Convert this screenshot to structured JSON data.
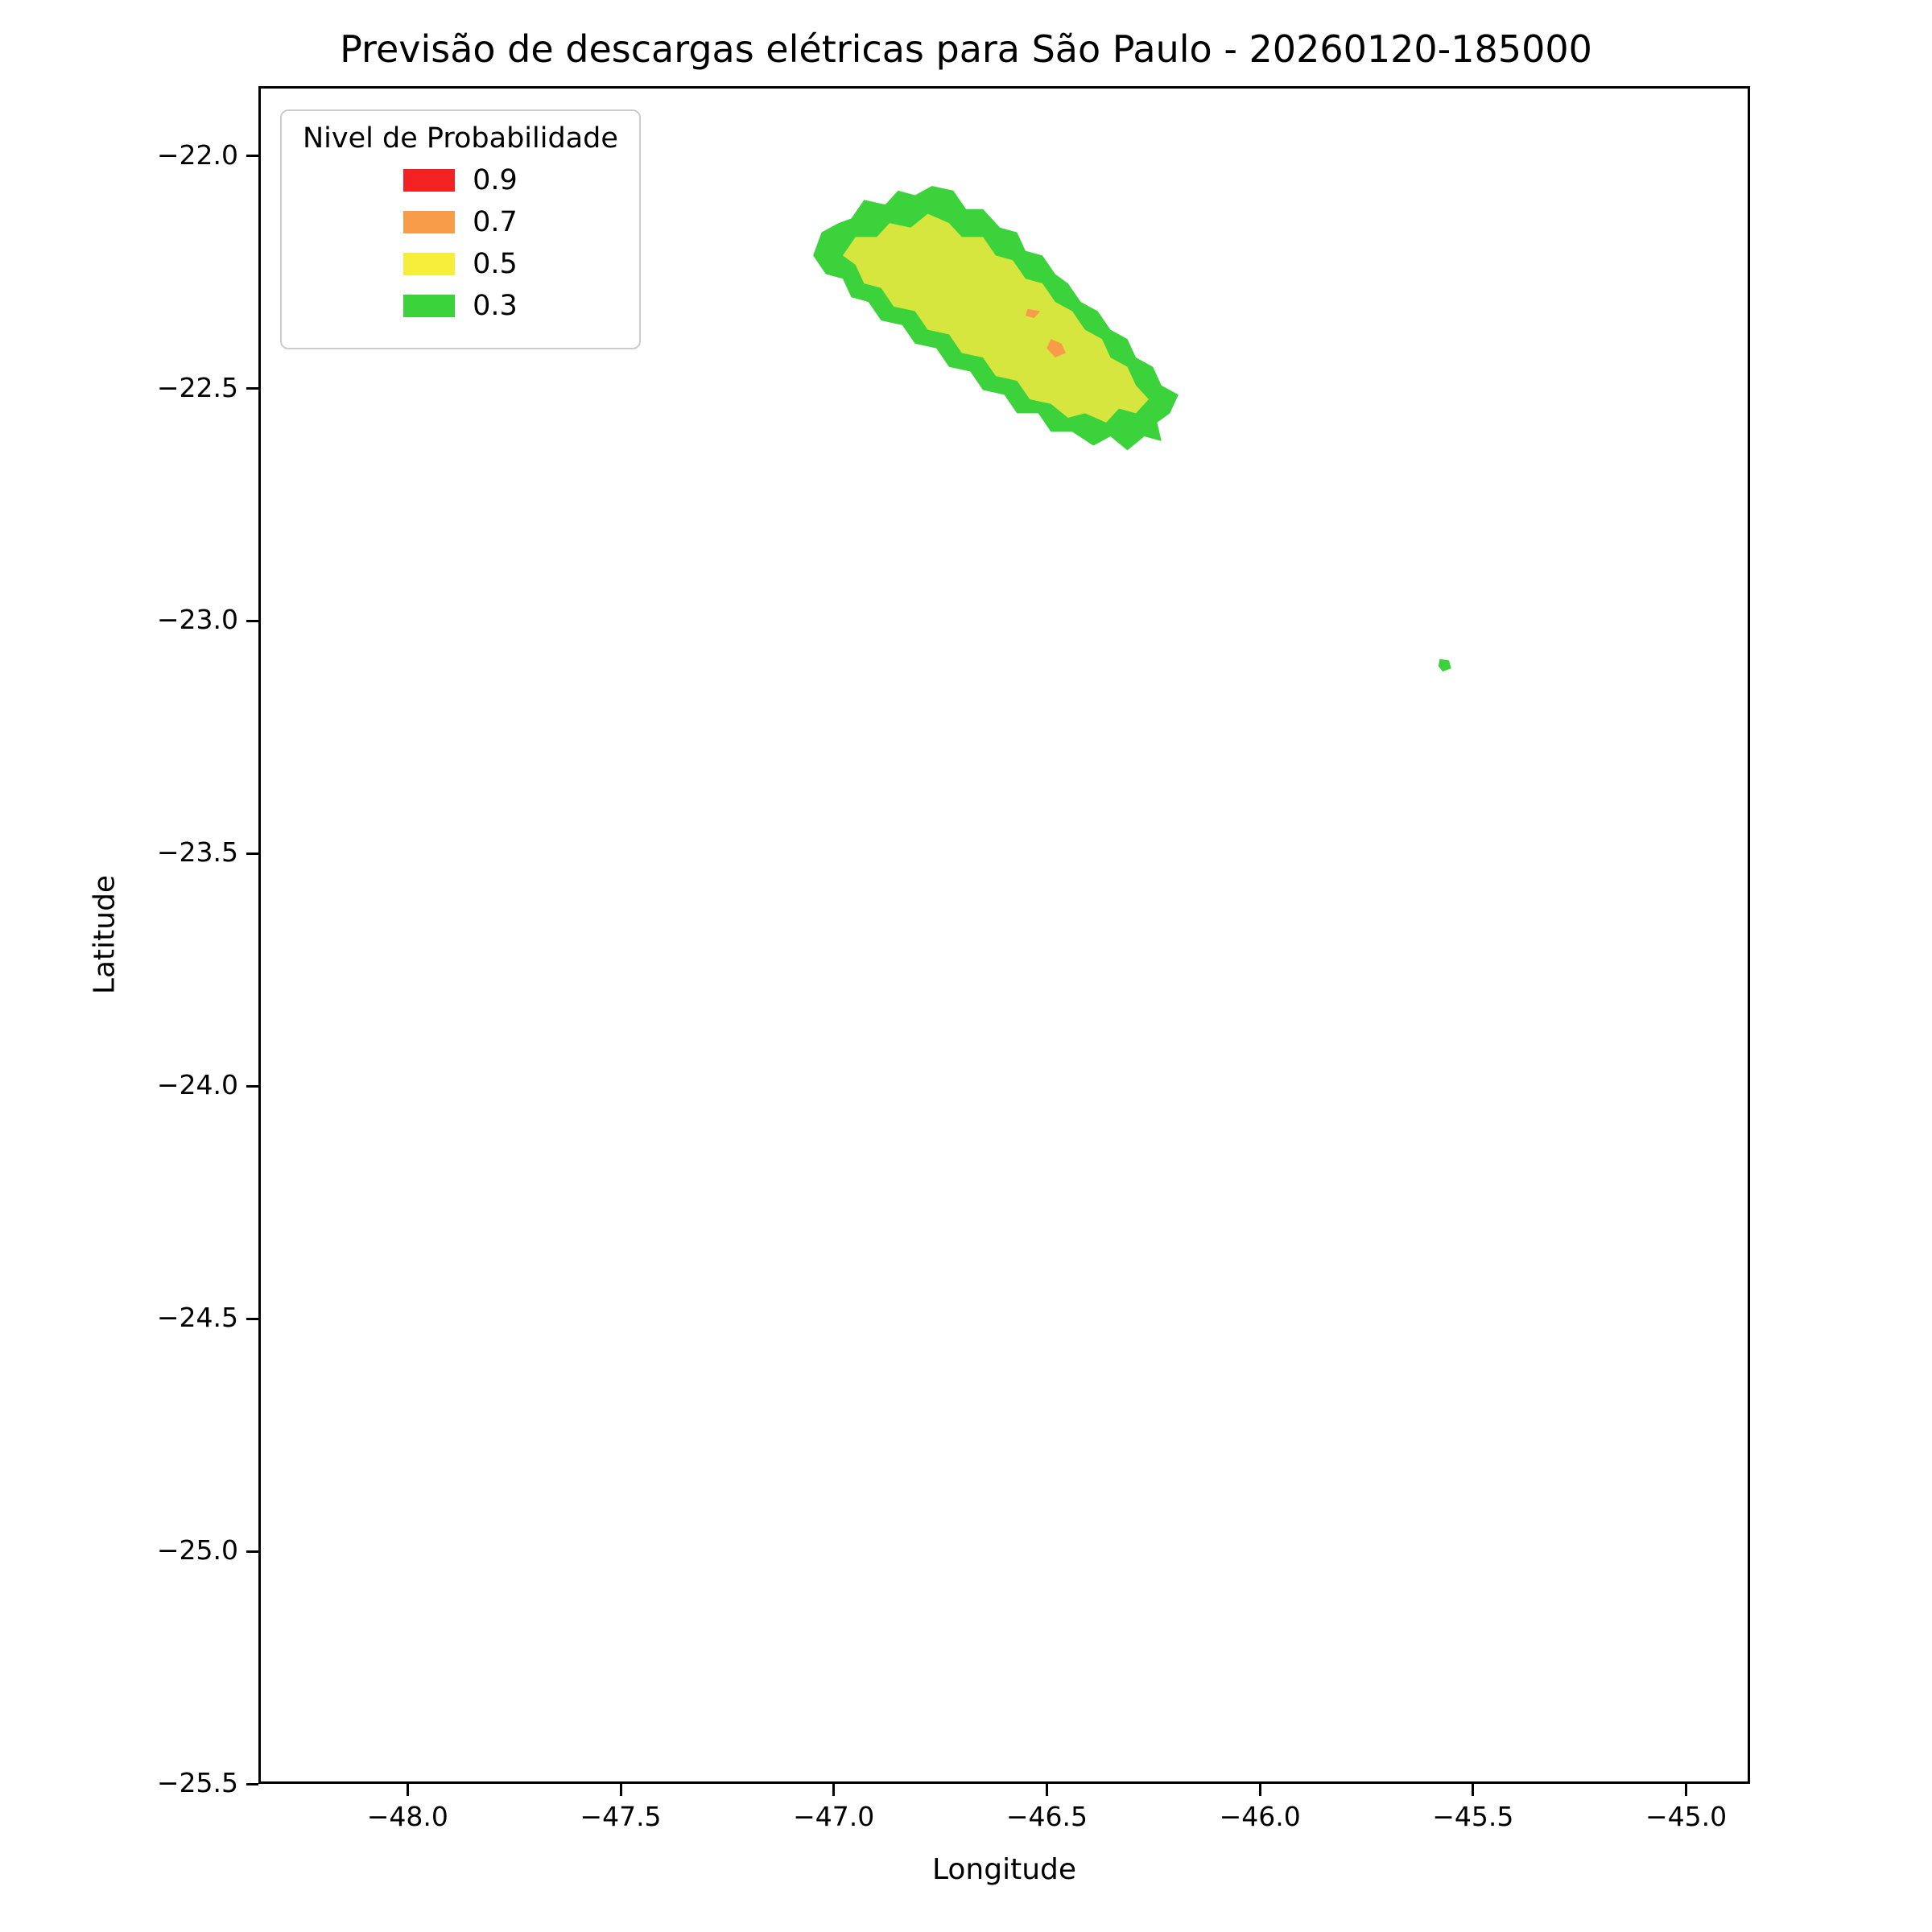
{
  "chart_data": {
    "type": "contour",
    "title": "Previsão de descargas elétricas para São Paulo - 20260120-185000",
    "xlabel": "Longitude",
    "ylabel": "Latitude",
    "xlim": [
      -48.35,
      -44.85
    ],
    "ylim": [
      -25.5,
      -21.85
    ],
    "grid": false,
    "background": "#ffffff",
    "xticks": [
      {
        "value": -48.0,
        "label": "−48.0"
      },
      {
        "value": -47.5,
        "label": "−47.5"
      },
      {
        "value": -47.0,
        "label": "−47.0"
      },
      {
        "value": -46.5,
        "label": "−46.5"
      },
      {
        "value": -46.0,
        "label": "−46.0"
      },
      {
        "value": -45.5,
        "label": "−45.5"
      },
      {
        "value": -45.0,
        "label": "−45.0"
      }
    ],
    "yticks": [
      {
        "value": -22.0,
        "label": "−22.0"
      },
      {
        "value": -22.5,
        "label": "−22.5"
      },
      {
        "value": -23.0,
        "label": "−23.0"
      },
      {
        "value": -23.5,
        "label": "−23.5"
      },
      {
        "value": -24.0,
        "label": "−24.0"
      },
      {
        "value": -24.5,
        "label": "−24.5"
      },
      {
        "value": -25.0,
        "label": "−25.0"
      },
      {
        "value": -25.5,
        "label": "−25.5"
      }
    ],
    "legend": {
      "title": "Nivel de Probabilidade",
      "position": "upper-left",
      "entries": [
        {
          "label": "0.9",
          "color": "#f32121"
        },
        {
          "label": "0.7",
          "color": "#f89c4a"
        },
        {
          "label": "0.5",
          "color": "#f5ee3b"
        },
        {
          "label": "0.3",
          "color": "#3bd23b"
        }
      ]
    },
    "regions": [
      {
        "name": "prob-0.3-main-cell",
        "level": 0.3,
        "color": "#3bd23b",
        "points": [
          [
            -47.05,
            -22.21
          ],
          [
            -47.03,
            -22.16
          ],
          [
            -46.99,
            -22.14
          ],
          [
            -46.96,
            -22.13
          ],
          [
            -46.93,
            -22.09
          ],
          [
            -46.88,
            -22.1
          ],
          [
            -46.85,
            -22.07
          ],
          [
            -46.81,
            -22.08
          ],
          [
            -46.77,
            -22.06
          ],
          [
            -46.72,
            -22.07
          ],
          [
            -46.69,
            -22.11
          ],
          [
            -46.65,
            -22.11
          ],
          [
            -46.61,
            -22.15
          ],
          [
            -46.57,
            -22.16
          ],
          [
            -46.55,
            -22.2
          ],
          [
            -46.51,
            -22.21
          ],
          [
            -46.48,
            -22.25
          ],
          [
            -46.45,
            -22.27
          ],
          [
            -46.42,
            -22.31
          ],
          [
            -46.38,
            -22.33
          ],
          [
            -46.35,
            -22.37
          ],
          [
            -46.31,
            -22.39
          ],
          [
            -46.29,
            -22.43
          ],
          [
            -46.25,
            -22.45
          ],
          [
            -46.23,
            -22.49
          ],
          [
            -46.19,
            -22.51
          ],
          [
            -46.21,
            -22.55
          ],
          [
            -46.24,
            -22.57
          ],
          [
            -46.23,
            -22.61
          ],
          [
            -46.27,
            -22.6
          ],
          [
            -46.31,
            -22.63
          ],
          [
            -46.35,
            -22.6
          ],
          [
            -46.39,
            -22.62
          ],
          [
            -46.44,
            -22.59
          ],
          [
            -46.49,
            -22.59
          ],
          [
            -46.52,
            -22.55
          ],
          [
            -46.57,
            -22.55
          ],
          [
            -46.6,
            -22.51
          ],
          [
            -46.65,
            -22.5
          ],
          [
            -46.68,
            -22.46
          ],
          [
            -46.73,
            -22.45
          ],
          [
            -46.76,
            -22.41
          ],
          [
            -46.81,
            -22.4
          ],
          [
            -46.84,
            -22.36
          ],
          [
            -46.89,
            -22.35
          ],
          [
            -46.92,
            -22.31
          ],
          [
            -46.96,
            -22.3
          ],
          [
            -46.98,
            -22.26
          ],
          [
            -47.02,
            -22.25
          ]
        ]
      },
      {
        "name": "prob-0.5-main-cell",
        "level": 0.5,
        "color": "#d7e63e",
        "points": [
          [
            -46.98,
            -22.21
          ],
          [
            -46.95,
            -22.17
          ],
          [
            -46.9,
            -22.17
          ],
          [
            -46.87,
            -22.14
          ],
          [
            -46.82,
            -22.15
          ],
          [
            -46.78,
            -22.12
          ],
          [
            -46.73,
            -22.14
          ],
          [
            -46.7,
            -22.17
          ],
          [
            -46.65,
            -22.17
          ],
          [
            -46.62,
            -22.21
          ],
          [
            -46.58,
            -22.22
          ],
          [
            -46.55,
            -22.26
          ],
          [
            -46.51,
            -22.27
          ],
          [
            -46.48,
            -22.31
          ],
          [
            -46.44,
            -22.33
          ],
          [
            -46.41,
            -22.37
          ],
          [
            -46.37,
            -22.39
          ],
          [
            -46.35,
            -22.43
          ],
          [
            -46.31,
            -22.45
          ],
          [
            -46.29,
            -22.49
          ],
          [
            -46.26,
            -22.52
          ],
          [
            -46.29,
            -22.55
          ],
          [
            -46.33,
            -22.54
          ],
          [
            -46.36,
            -22.57
          ],
          [
            -46.41,
            -22.55
          ],
          [
            -46.45,
            -22.56
          ],
          [
            -46.49,
            -22.53
          ],
          [
            -46.54,
            -22.52
          ],
          [
            -46.57,
            -22.48
          ],
          [
            -46.62,
            -22.47
          ],
          [
            -46.65,
            -22.43
          ],
          [
            -46.7,
            -22.42
          ],
          [
            -46.73,
            -22.38
          ],
          [
            -46.78,
            -22.37
          ],
          [
            -46.81,
            -22.33
          ],
          [
            -46.86,
            -22.32
          ],
          [
            -46.89,
            -22.28
          ],
          [
            -46.93,
            -22.27
          ],
          [
            -46.95,
            -22.23
          ]
        ]
      },
      {
        "name": "prob-0.7-spot-a",
        "level": 0.7,
        "color": "#f89c4a",
        "points": [
          [
            -46.545,
            -22.325
          ],
          [
            -46.515,
            -22.33
          ],
          [
            -46.53,
            -22.345
          ],
          [
            -46.55,
            -22.34
          ]
        ]
      },
      {
        "name": "prob-0.7-spot-b",
        "level": 0.7,
        "color": "#f89c4a",
        "points": [
          [
            -46.49,
            -22.39
          ],
          [
            -46.465,
            -22.4
          ],
          [
            -46.455,
            -22.42
          ],
          [
            -46.48,
            -22.43
          ],
          [
            -46.5,
            -22.41
          ]
        ]
      },
      {
        "name": "prob-0.3-isolated-speck",
        "level": 0.3,
        "color": "#3bd23b",
        "points": [
          [
            -45.575,
            -23.08
          ],
          [
            -45.553,
            -23.083
          ],
          [
            -45.548,
            -23.1
          ],
          [
            -45.568,
            -23.107
          ],
          [
            -45.578,
            -23.095
          ]
        ]
      }
    ]
  }
}
